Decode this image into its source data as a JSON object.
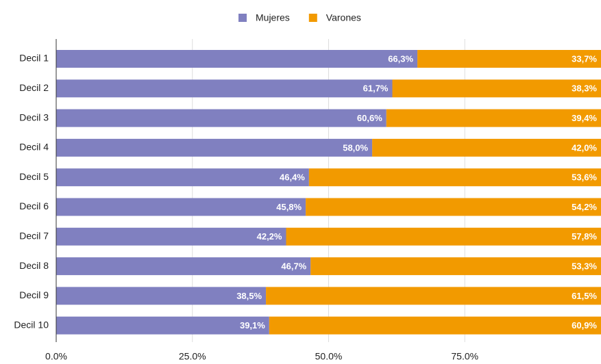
{
  "chart_data": {
    "type": "stacked-bar-horizontal",
    "categories": [
      "Decil 1",
      "Decil 2",
      "Decil 3",
      "Decil 4",
      "Decil 5",
      "Decil 6",
      "Decil 7",
      "Decil 8",
      "Decil 9",
      "Decil 10"
    ],
    "series": [
      {
        "name": "Mujeres",
        "color": "#8080c0",
        "values": [
          66.3,
          61.7,
          60.6,
          58.0,
          46.4,
          45.8,
          42.2,
          46.7,
          38.5,
          39.1
        ],
        "value_labels": [
          "66,3%",
          "61,7%",
          "60,6%",
          "58,0%",
          "46,4%",
          "45,8%",
          "42,2%",
          "46,7%",
          "38,5%",
          "39,1%"
        ]
      },
      {
        "name": "Varones",
        "color": "#f29a00",
        "values": [
          33.7,
          38.3,
          39.4,
          42.0,
          53.6,
          54.2,
          57.8,
          53.3,
          61.5,
          60.9
        ],
        "value_labels": [
          "33,7%",
          "38,3%",
          "39,4%",
          "42,0%",
          "53,6%",
          "54,2%",
          "57,8%",
          "53,3%",
          "61,5%",
          "60,9%"
        ]
      }
    ],
    "xlim": [
      0,
      100
    ],
    "xticks": [
      {
        "value": 0,
        "label": "0.0%"
      },
      {
        "value": 25,
        "label": "25.0%"
      },
      {
        "value": 50,
        "label": "50.0%"
      },
      {
        "value": 75,
        "label": "75.0%"
      }
    ],
    "grid": true,
    "legend": "top"
  }
}
